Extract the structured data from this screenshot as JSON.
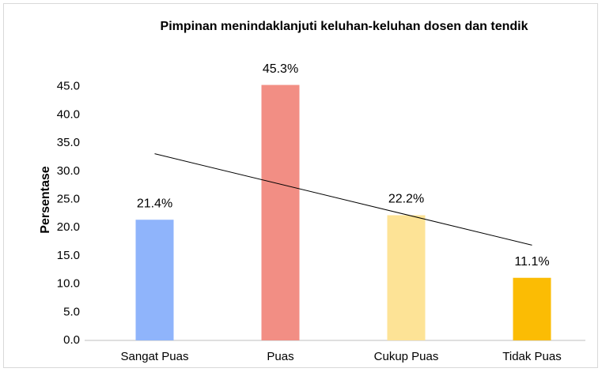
{
  "chart_data": {
    "type": "bar",
    "title": "Pimpinan menindaklanjuti keluhan-keluhan dosen dan tendik",
    "y_label": "Persentase",
    "categories": [
      "Sangat Puas",
      "Puas",
      "Cukup Puas",
      "Tidak Puas"
    ],
    "values": [
      21.4,
      45.3,
      22.2,
      11.1
    ],
    "value_labels": [
      "21.4%",
      "45.3%",
      "22.2%",
      "11.1%"
    ],
    "colors": [
      "#8fb4fb",
      "#f28e84",
      "#fde396",
      "#fbbc04"
    ],
    "ylim": [
      0,
      50
    ],
    "yticks": [
      {
        "value": 0,
        "label": "0.0"
      },
      {
        "value": 5,
        "label": "5.0"
      },
      {
        "value": 10,
        "label": "10.0"
      },
      {
        "value": 15,
        "label": "15.0"
      },
      {
        "value": 20,
        "label": "20.0"
      },
      {
        "value": 25,
        "label": "25.0"
      },
      {
        "value": 30,
        "label": "30.0"
      },
      {
        "value": 35,
        "label": "35.0"
      },
      {
        "value": 40,
        "label": "40.0"
      },
      {
        "value": 45,
        "label": "45.0"
      },
      {
        "value": {
          "$ref": null
        },
        "label": null
      }
    ],
    "trendline": "linear",
    "grid": false
  }
}
